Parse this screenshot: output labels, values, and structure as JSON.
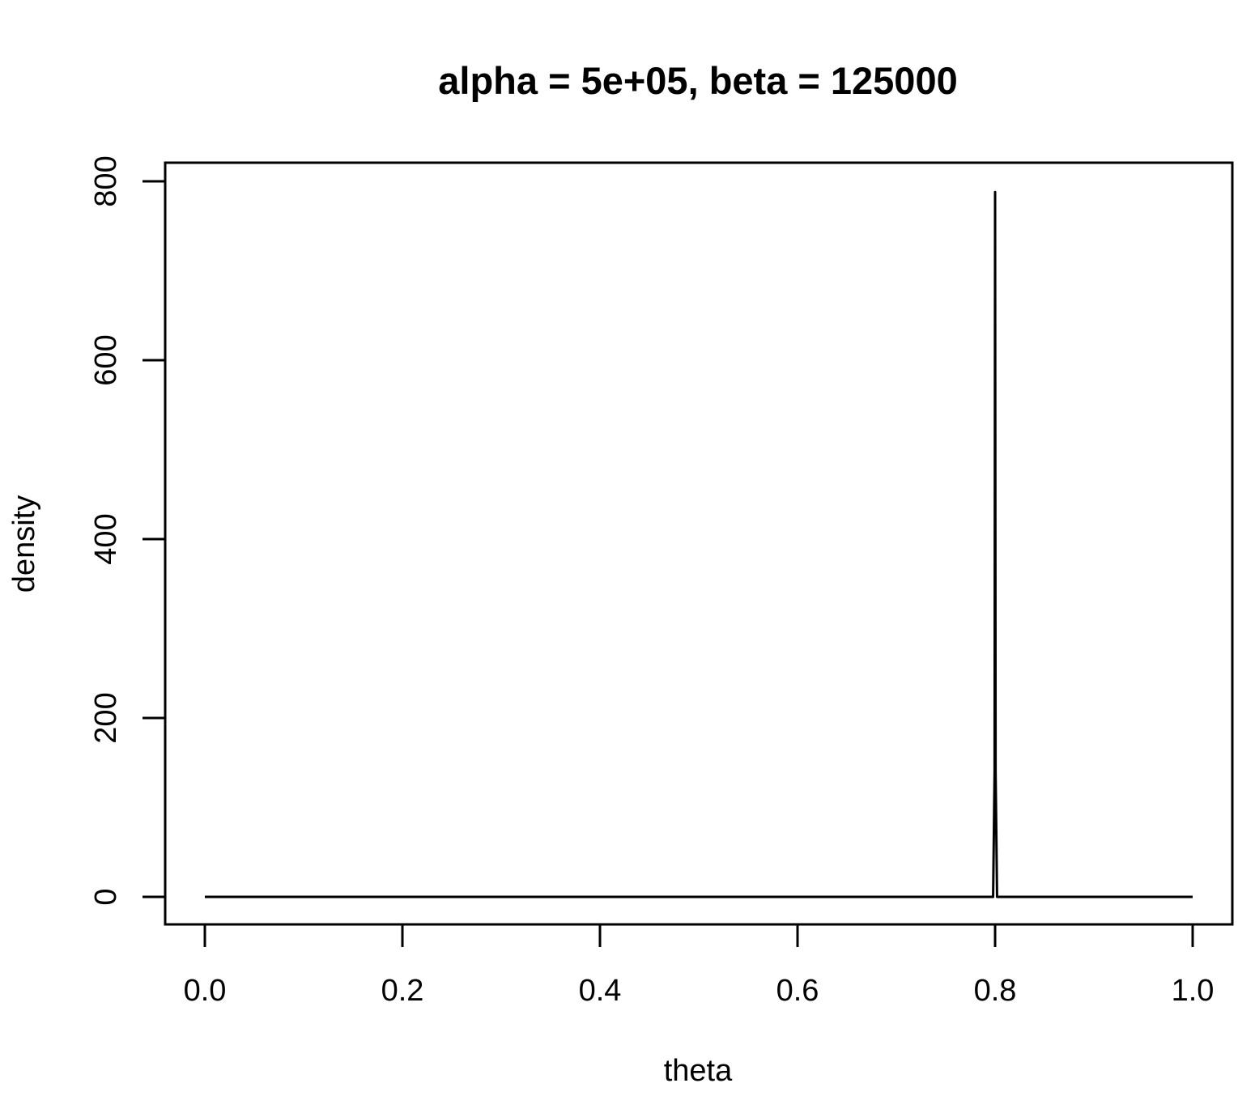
{
  "chart_data": {
    "type": "line",
    "title": "alpha = 5e+05, beta = 125000",
    "xlabel": "theta",
    "ylabel": "density",
    "xlim": [
      0.0,
      1.0
    ],
    "ylim": [
      0,
      800
    ],
    "x_ticks": [
      "0.0",
      "0.2",
      "0.4",
      "0.6",
      "0.8",
      "1.0"
    ],
    "y_ticks": [
      "0",
      "200",
      "400",
      "600",
      "800"
    ],
    "grid": false,
    "line_color": "#000000",
    "series": [
      {
        "x": [
          0.0,
          0.798,
          0.7995,
          0.8,
          0.8005,
          0.802,
          1.0
        ],
        "y": [
          0,
          0,
          140,
          788,
          140,
          0,
          0
        ]
      }
    ]
  }
}
